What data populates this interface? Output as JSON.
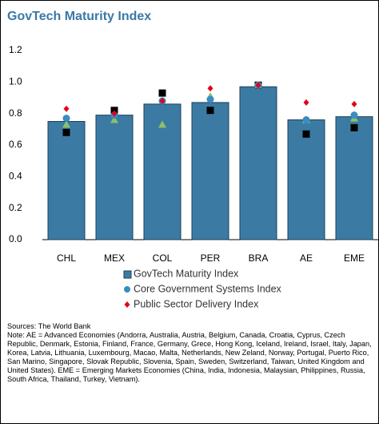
{
  "chart_data": {
    "type": "bar",
    "title": "GovTech Maturity Index",
    "categories": [
      "CHL",
      "MEX",
      "COL",
      "PER",
      "BRA",
      "AE",
      "EME"
    ],
    "series": [
      {
        "name": "GovTech Maturity Index",
        "marker": "bar",
        "color": "#3b7ba3",
        "values": [
          0.75,
          0.79,
          0.86,
          0.87,
          0.97,
          0.76,
          0.78
        ]
      },
      {
        "marker": "square",
        "color": "#000000",
        "values": [
          0.68,
          0.82,
          0.93,
          0.82,
          0.98,
          0.67,
          0.71
        ]
      },
      {
        "marker": "triangle",
        "color": "#8cc06a",
        "values": [
          0.73,
          0.76,
          0.73,
          0.91,
          0.98,
          0.76,
          0.77
        ]
      },
      {
        "name": "Core Government Systems Index",
        "marker": "circle",
        "color": "#3a8cc2",
        "values": [
          0.77,
          0.79,
          0.88,
          0.89,
          0.98,
          0.76,
          0.79
        ]
      },
      {
        "name": "Public Sector Delivery Index",
        "marker": "diamond",
        "color": "#e3001b",
        "values": [
          0.83,
          0.8,
          0.88,
          0.96,
          0.98,
          0.87,
          0.86
        ]
      }
    ],
    "ylim": [
      0,
      1.2
    ],
    "yticks": [
      {
        "value": 0,
        "label": "0.0"
      },
      {
        "value": 0.2,
        "label": "0.2"
      },
      {
        "value": 0.4,
        "label": "0.4"
      },
      {
        "value": 0.6,
        "label": "0.6"
      },
      {
        "value": 0.8,
        "label": "0.8"
      },
      {
        "value": 1.0,
        "label": "1.0"
      },
      {
        "value": 1.2,
        "label": "1.2"
      }
    ],
    "sources": "Sources: The World Bank",
    "note": "Note: AE = Advanced Economies (Andorra, Australia, Austria, Belgium, Canada, Croatia, Cyprus, Czech Republic, Denmark, Estonia, Finland, France, Germany, Grece, Hong Kong, Iceland, Ireland, Israel, Italy, Japan, Korea, Latvia, Lithuania, Luxembourg, Macao, Malta, Netherlands, New Zeland, Norway, Portugal, Puerto Rico, San Marino, Singapore, Slovak Republic, Slovenia, Spain, Sweden, Switzerland, Taiwan, United Kingdom and United States). EME = Emerging Markets Economies (China, India, Indonesia, Malaysian, Philippines, Russia, South Africa, Thailand, Turkey, Vietnam)."
  }
}
